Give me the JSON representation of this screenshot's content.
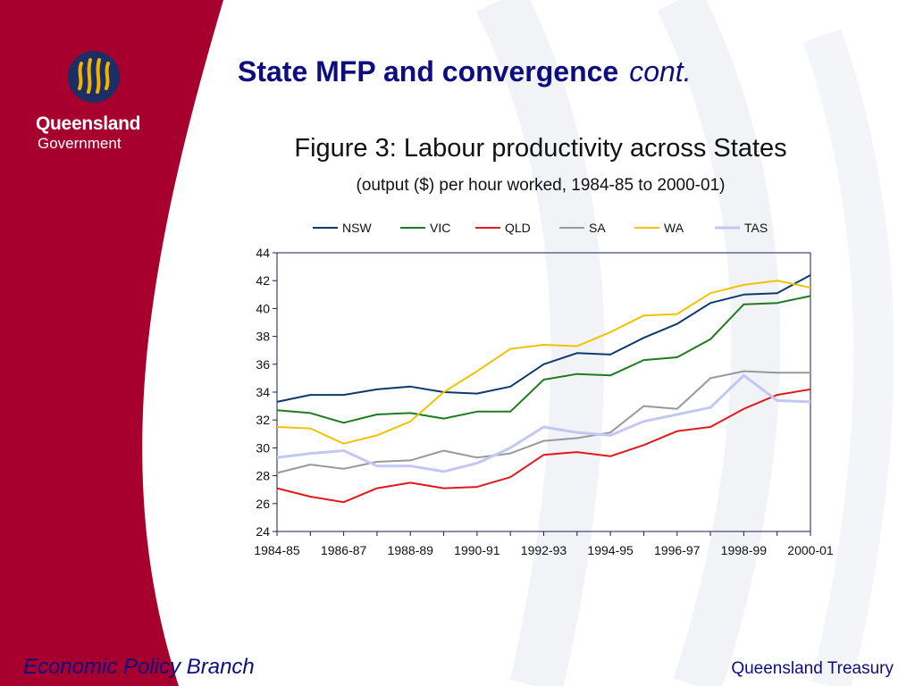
{
  "slide": {
    "title": "State MFP and convergence",
    "title_cont": "cont.",
    "footer_left": "Economic Policy Branch",
    "footer_right": "Queensland Treasury"
  },
  "logo": {
    "name": "Queensland",
    "sub": "Government"
  },
  "figure": {
    "title": "Figure 3: Labour productivity across States",
    "subtitle": "(output ($) per hour worked, 1984-85 to 2000-01)"
  },
  "colors": {
    "maroon": "#a8002e",
    "title": "#0d0d80",
    "NSW": "#0d3a6e",
    "VIC": "#1e7c1e",
    "QLD": "#e01a1a",
    "SA": "#999999",
    "WA": "#f2c200",
    "TAS": "#c4c7f2"
  },
  "chart_data": {
    "type": "line",
    "x": [
      "1984-85",
      "1985-86",
      "1986-87",
      "1987-88",
      "1988-89",
      "1989-90",
      "1990-91",
      "1991-92",
      "1992-93",
      "1993-94",
      "1994-95",
      "1995-96",
      "1996-97",
      "1997-98",
      "1998-99",
      "1999-00",
      "2000-01"
    ],
    "x_tick_labels": [
      "1984-85",
      "1986-87",
      "1988-89",
      "1990-91",
      "1992-93",
      "1994-95",
      "1996-97",
      "1998-99",
      "2000-01"
    ],
    "ylim": [
      24,
      44
    ],
    "y_ticks": [
      24,
      26,
      28,
      30,
      32,
      34,
      36,
      38,
      40,
      42,
      44
    ],
    "legend_position": "top",
    "series": [
      {
        "name": "NSW",
        "color": "#0d3a6e",
        "values": [
          33.3,
          33.8,
          33.8,
          34.2,
          34.4,
          34.0,
          33.9,
          34.4,
          36.0,
          36.8,
          36.7,
          37.9,
          38.9,
          40.4,
          41.0,
          41.1,
          42.4
        ]
      },
      {
        "name": "VIC",
        "color": "#1e7c1e",
        "values": [
          32.7,
          32.5,
          31.8,
          32.4,
          32.5,
          32.1,
          32.6,
          32.6,
          34.9,
          35.3,
          35.2,
          36.3,
          36.5,
          37.8,
          40.3,
          40.4,
          40.9
        ]
      },
      {
        "name": "QLD",
        "color": "#e01a1a",
        "values": [
          27.1,
          26.5,
          26.1,
          27.1,
          27.5,
          27.1,
          27.2,
          27.9,
          29.5,
          29.7,
          29.4,
          30.2,
          31.2,
          31.5,
          32.8,
          33.8,
          34.2
        ]
      },
      {
        "name": "SA",
        "color": "#999999",
        "values": [
          28.2,
          28.8,
          28.5,
          29.0,
          29.1,
          29.8,
          29.3,
          29.6,
          30.5,
          30.7,
          31.1,
          33.0,
          32.8,
          35.0,
          35.5,
          35.4,
          35.4
        ]
      },
      {
        "name": "WA",
        "color": "#f2c200",
        "values": [
          31.5,
          31.4,
          30.3,
          30.9,
          31.9,
          34.0,
          35.5,
          37.1,
          37.4,
          37.3,
          38.3,
          39.5,
          39.6,
          41.1,
          41.7,
          42.0,
          41.5
        ]
      },
      {
        "name": "TAS",
        "color": "#c4c7f2",
        "values": [
          29.3,
          29.6,
          29.8,
          28.7,
          28.7,
          28.3,
          28.9,
          30.0,
          31.5,
          31.1,
          30.9,
          31.9,
          32.4,
          32.9,
          35.2,
          33.4,
          33.3
        ]
      }
    ]
  }
}
